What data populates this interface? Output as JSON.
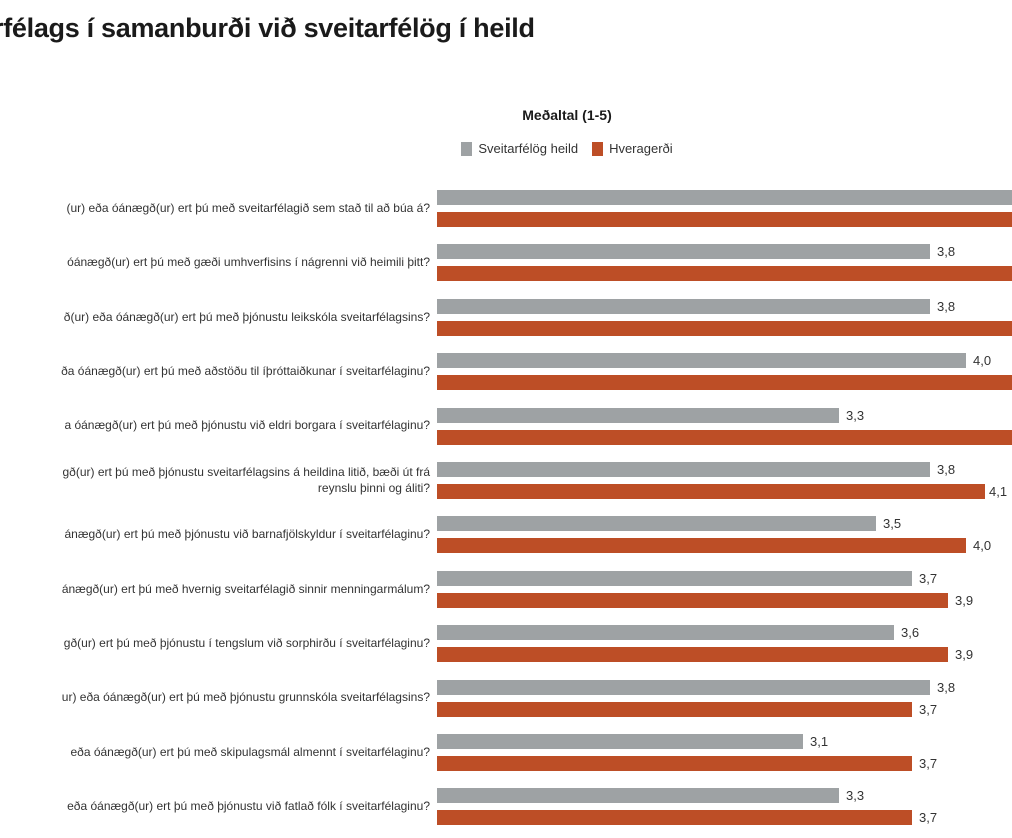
{
  "title": "rfélags í samanburði við sveitarfélög í heild",
  "subtitle": "Meðaltal (1-5)",
  "legend": {
    "heild": {
      "label": "Sveitarfélög heild",
      "color": "#9ea2a4"
    },
    "hveragerdi": {
      "label": "Hveragerði",
      "color": "#bd4e26"
    }
  },
  "colors": {
    "heild_bar": "#9ea2a4",
    "hveragerdi_bar": "#bd4e26"
  },
  "chart_data": {
    "type": "bar",
    "orientation": "horizontal",
    "title": "rfélags í samanburði við sveitarfélög í heild",
    "subtitle": "Meðaltal (1-5)",
    "value_axis": "Meðaltal (1-5)",
    "legend_position": "top-center",
    "grid": false,
    "series": [
      "Sveitarfélög heild",
      "Hveragerði"
    ],
    "note": "Image is cropped: question texts cut at left edge; first rows' bars and labels cut at right edge (null = value label not visible).",
    "rows": [
      {
        "question_lines": [
          "(ur) eða óánægð(ur) ert þú með sveitarfélagið sem stað til að búa á?"
        ],
        "heild": null,
        "heild_label": "",
        "heild_clipped": true,
        "hveragerdi": null,
        "hveragerdi_label": "",
        "hveragerdi_clipped": true
      },
      {
        "question_lines": [
          "óánægð(ur) ert þú með gæði umhverfisins í nágrenni við heimili þitt?"
        ],
        "heild": 3.8,
        "heild_label": "3,8",
        "heild_clipped": false,
        "hveragerdi": null,
        "hveragerdi_label": "",
        "hveragerdi_clipped": true
      },
      {
        "question_lines": [
          "ð(ur) eða óánægð(ur) ert þú með þjónustu leikskóla sveitarfélagsins?"
        ],
        "heild": 3.8,
        "heild_label": "3,8",
        "heild_clipped": false,
        "hveragerdi": null,
        "hveragerdi_label": "",
        "hveragerdi_clipped": true
      },
      {
        "question_lines": [
          "ða óánægð(ur) ert þú með aðstöðu til íþróttaiðkunar í sveitarfélaginu?"
        ],
        "heild": 4.0,
        "heild_label": "4,0",
        "heild_clipped": false,
        "hveragerdi": null,
        "hveragerdi_label": "",
        "hveragerdi_clipped": true
      },
      {
        "question_lines": [
          "a óánægð(ur) ert þú með þjónustu við eldri borgara í sveitarfélaginu?"
        ],
        "heild": 3.3,
        "heild_label": "3,3",
        "heild_clipped": false,
        "hveragerdi": null,
        "hveragerdi_label": "",
        "hveragerdi_clipped": true
      },
      {
        "question_lines": [
          "gð(ur) ert þú með þjónustu sveitarfélagsins á heildina litið, bæði út frá",
          "reynslu þinni og áliti?"
        ],
        "heild": 3.8,
        "heild_label": "3,8",
        "heild_clipped": false,
        "hveragerdi": 4.1,
        "hveragerdi_label": "4,1",
        "hveragerdi_clipped": false,
        "hveragerdi_label_cropped": true
      },
      {
        "question_lines": [
          "ánægð(ur) ert þú með þjónustu við barnafjölskyldur í sveitarfélaginu?"
        ],
        "heild": 3.5,
        "heild_label": "3,5",
        "heild_clipped": false,
        "hveragerdi": 4.0,
        "hveragerdi_label": "4,0",
        "hveragerdi_clipped": false
      },
      {
        "question_lines": [
          "ánægð(ur) ert þú með hvernig sveitarfélagið sinnir menningarmálum?"
        ],
        "heild": 3.7,
        "heild_label": "3,7",
        "heild_clipped": false,
        "hveragerdi": 3.9,
        "hveragerdi_label": "3,9",
        "hveragerdi_clipped": false
      },
      {
        "question_lines": [
          "gð(ur) ert þú með þjónustu í tengslum við sorphirðu í sveitarfélaginu?"
        ],
        "heild": 3.6,
        "heild_label": "3,6",
        "heild_clipped": false,
        "hveragerdi": 3.9,
        "hveragerdi_label": "3,9",
        "hveragerdi_clipped": false
      },
      {
        "question_lines": [
          "ur) eða óánægð(ur) ert þú með þjónustu grunnskóla sveitarfélagsins?"
        ],
        "heild": 3.8,
        "heild_label": "3,8",
        "heild_clipped": false,
        "hveragerdi": 3.7,
        "hveragerdi_label": "3,7",
        "hveragerdi_clipped": false
      },
      {
        "question_lines": [
          "eða óánægð(ur) ert þú með skipulagsmál almennt í sveitarfélaginu?"
        ],
        "heild": 3.1,
        "heild_label": "3,1",
        "heild_clipped": false,
        "hveragerdi": 3.7,
        "hveragerdi_label": "3,7",
        "hveragerdi_clipped": false
      },
      {
        "question_lines": [
          "eða óánægð(ur) ert þú með þjónustu við fatlað fólk í sveitarfélaginu?"
        ],
        "heild": 3.3,
        "heild_label": "3,3",
        "heild_clipped": false,
        "hveragerdi": 3.7,
        "hveragerdi_label": "3,7",
        "hveragerdi_clipped": false
      }
    ]
  }
}
